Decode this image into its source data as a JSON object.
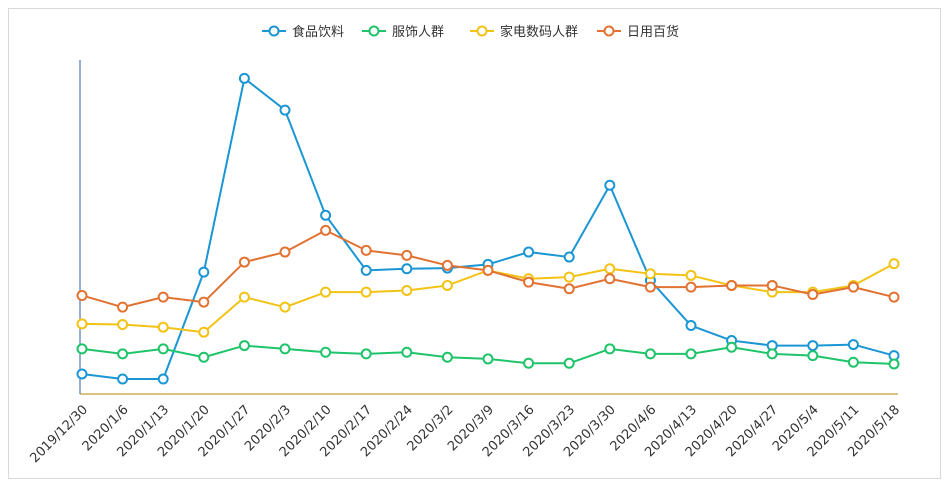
{
  "chart_data": {
    "type": "line",
    "title": "",
    "xlabel": "",
    "ylabel": "",
    "ylim": [
      0,
      100
    ],
    "grid": false,
    "legend_position": "top-center",
    "categories": [
      "2019/12/30",
      "2020/1/6",
      "2020/1/13",
      "2020/1/20",
      "2020/1/27",
      "2020/2/3",
      "2020/2/10",
      "2020/2/17",
      "2020/2/24",
      "2020/3/2",
      "2020/3/9",
      "2020/3/16",
      "2020/3/23",
      "2020/3/30",
      "2020/4/6",
      "2020/4/13",
      "2020/4/20",
      "2020/4/27",
      "2020/5/4",
      "2020/5/11",
      "2020/5/18"
    ],
    "series": [
      {
        "name": "食品饮料",
        "color": "#1a96d4",
        "values": [
          6,
          4.5,
          4.5,
          36.5,
          94.5,
          85,
          53.5,
          37,
          37.5,
          37.7,
          38.8,
          42.5,
          41,
          62.5,
          34,
          20.5,
          16,
          14.5,
          14.5,
          14.8,
          11.5
        ]
      },
      {
        "name": "服饰人群",
        "color": "#1fc46a",
        "values": [
          13.5,
          12,
          13.5,
          11,
          14.5,
          13.5,
          12.5,
          12,
          12.5,
          11,
          10.5,
          9.2,
          9.2,
          13.5,
          12,
          12,
          14,
          12,
          11.5,
          9.5,
          9
        ]
      },
      {
        "name": "家电数码人群",
        "color": "#f2c314",
        "values": [
          21,
          20.8,
          20,
          18.5,
          29,
          26,
          30.5,
          30.5,
          31,
          32.5,
          37,
          34.5,
          35,
          37.5,
          36,
          35.5,
          32.5,
          30.5,
          30.5,
          32.5,
          39
        ]
      },
      {
        "name": "日用百货",
        "color": "#e27232",
        "values": [
          29.5,
          26,
          29,
          27.5,
          39.5,
          42.5,
          49,
          43,
          41.5,
          38.5,
          37,
          33.5,
          31.5,
          34.5,
          32,
          32,
          32.5,
          32.5,
          29.8,
          32,
          29
        ]
      }
    ]
  }
}
